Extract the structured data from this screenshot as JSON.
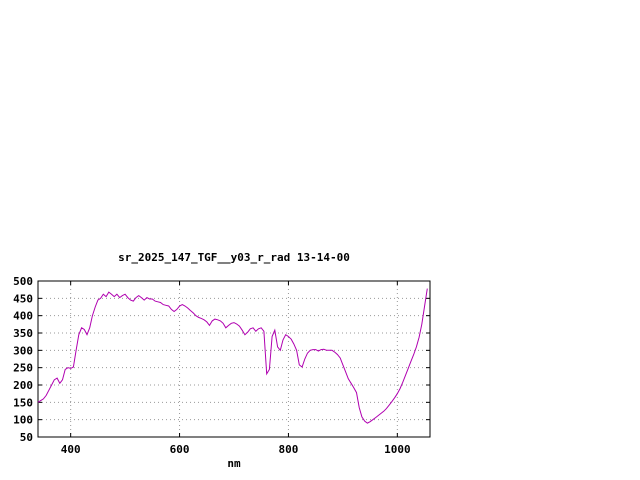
{
  "chart": {
    "title": "sr_2025_147_TGF__y03_r_rad 13-14-00",
    "xlabel": "nm"
  },
  "chart_data": {
    "type": "line",
    "title": "sr_2025_147_TGF__y03_r_rad 13-14-00",
    "xlabel": "nm",
    "ylabel": "",
    "xlim": [
      340,
      1060
    ],
    "ylim": [
      50,
      500
    ],
    "x_ticks": [
      400,
      600,
      800,
      1000
    ],
    "y_ticks": [
      50,
      100,
      150,
      200,
      250,
      300,
      350,
      400,
      450,
      500
    ],
    "grid": true,
    "legend_position": "none",
    "line_color": "#b000b0",
    "grid_color": "#999999",
    "border_color": "#000000",
    "series": [
      {
        "name": "sr_2025_147_TGF__y03_r_rad",
        "points": [
          [
            340,
            150
          ],
          [
            345,
            155
          ],
          [
            350,
            160
          ],
          [
            355,
            170
          ],
          [
            360,
            185
          ],
          [
            365,
            200
          ],
          [
            370,
            215
          ],
          [
            375,
            220
          ],
          [
            380,
            205
          ],
          [
            385,
            215
          ],
          [
            390,
            245
          ],
          [
            395,
            250
          ],
          [
            400,
            248
          ],
          [
            405,
            252
          ],
          [
            410,
            300
          ],
          [
            415,
            345
          ],
          [
            420,
            365
          ],
          [
            425,
            360
          ],
          [
            430,
            345
          ],
          [
            435,
            365
          ],
          [
            440,
            400
          ],
          [
            445,
            425
          ],
          [
            450,
            445
          ],
          [
            455,
            450
          ],
          [
            460,
            462
          ],
          [
            465,
            455
          ],
          [
            470,
            468
          ],
          [
            475,
            462
          ],
          [
            480,
            455
          ],
          [
            485,
            462
          ],
          [
            490,
            452
          ],
          [
            495,
            458
          ],
          [
            500,
            462
          ],
          [
            505,
            452
          ],
          [
            510,
            445
          ],
          [
            515,
            442
          ],
          [
            520,
            452
          ],
          [
            525,
            458
          ],
          [
            530,
            452
          ],
          [
            535,
            445
          ],
          [
            540,
            452
          ],
          [
            545,
            448
          ],
          [
            550,
            448
          ],
          [
            555,
            442
          ],
          [
            560,
            440
          ],
          [
            565,
            438
          ],
          [
            570,
            432
          ],
          [
            575,
            430
          ],
          [
            580,
            428
          ],
          [
            585,
            418
          ],
          [
            590,
            412
          ],
          [
            595,
            418
          ],
          [
            600,
            428
          ],
          [
            605,
            432
          ],
          [
            610,
            428
          ],
          [
            615,
            422
          ],
          [
            620,
            415
          ],
          [
            625,
            408
          ],
          [
            630,
            400
          ],
          [
            635,
            395
          ],
          [
            640,
            392
          ],
          [
            645,
            388
          ],
          [
            650,
            382
          ],
          [
            655,
            372
          ],
          [
            660,
            385
          ],
          [
            665,
            390
          ],
          [
            670,
            388
          ],
          [
            675,
            385
          ],
          [
            680,
            378
          ],
          [
            685,
            365
          ],
          [
            690,
            372
          ],
          [
            695,
            378
          ],
          [
            700,
            380
          ],
          [
            705,
            376
          ],
          [
            710,
            370
          ],
          [
            715,
            358
          ],
          [
            720,
            345
          ],
          [
            725,
            352
          ],
          [
            730,
            362
          ],
          [
            735,
            365
          ],
          [
            740,
            355
          ],
          [
            745,
            362
          ],
          [
            750,
            365
          ],
          [
            755,
            355
          ],
          [
            760,
            232
          ],
          [
            765,
            245
          ],
          [
            770,
            340
          ],
          [
            775,
            358
          ],
          [
            780,
            310
          ],
          [
            785,
            300
          ],
          [
            790,
            330
          ],
          [
            795,
            345
          ],
          [
            800,
            340
          ],
          [
            805,
            332
          ],
          [
            810,
            318
          ],
          [
            815,
            300
          ],
          [
            820,
            258
          ],
          [
            825,
            252
          ],
          [
            830,
            275
          ],
          [
            835,
            292
          ],
          [
            840,
            300
          ],
          [
            845,
            302
          ],
          [
            850,
            302
          ],
          [
            855,
            298
          ],
          [
            860,
            302
          ],
          [
            865,
            303
          ],
          [
            870,
            300
          ],
          [
            875,
            300
          ],
          [
            880,
            300
          ],
          [
            885,
            295
          ],
          [
            890,
            288
          ],
          [
            895,
            278
          ],
          [
            900,
            258
          ],
          [
            905,
            238
          ],
          [
            910,
            218
          ],
          [
            915,
            205
          ],
          [
            920,
            192
          ],
          [
            925,
            178
          ],
          [
            930,
            135
          ],
          [
            935,
            108
          ],
          [
            940,
            96
          ],
          [
            945,
            90
          ],
          [
            950,
            94
          ],
          [
            955,
            100
          ],
          [
            960,
            106
          ],
          [
            965,
            112
          ],
          [
            970,
            118
          ],
          [
            975,
            124
          ],
          [
            980,
            132
          ],
          [
            985,
            142
          ],
          [
            990,
            152
          ],
          [
            995,
            163
          ],
          [
            1000,
            175
          ],
          [
            1005,
            190
          ],
          [
            1010,
            208
          ],
          [
            1015,
            228
          ],
          [
            1020,
            248
          ],
          [
            1025,
            268
          ],
          [
            1030,
            288
          ],
          [
            1035,
            310
          ],
          [
            1040,
            338
          ],
          [
            1045,
            375
          ],
          [
            1050,
            428
          ],
          [
            1055,
            478
          ]
        ]
      }
    ]
  }
}
